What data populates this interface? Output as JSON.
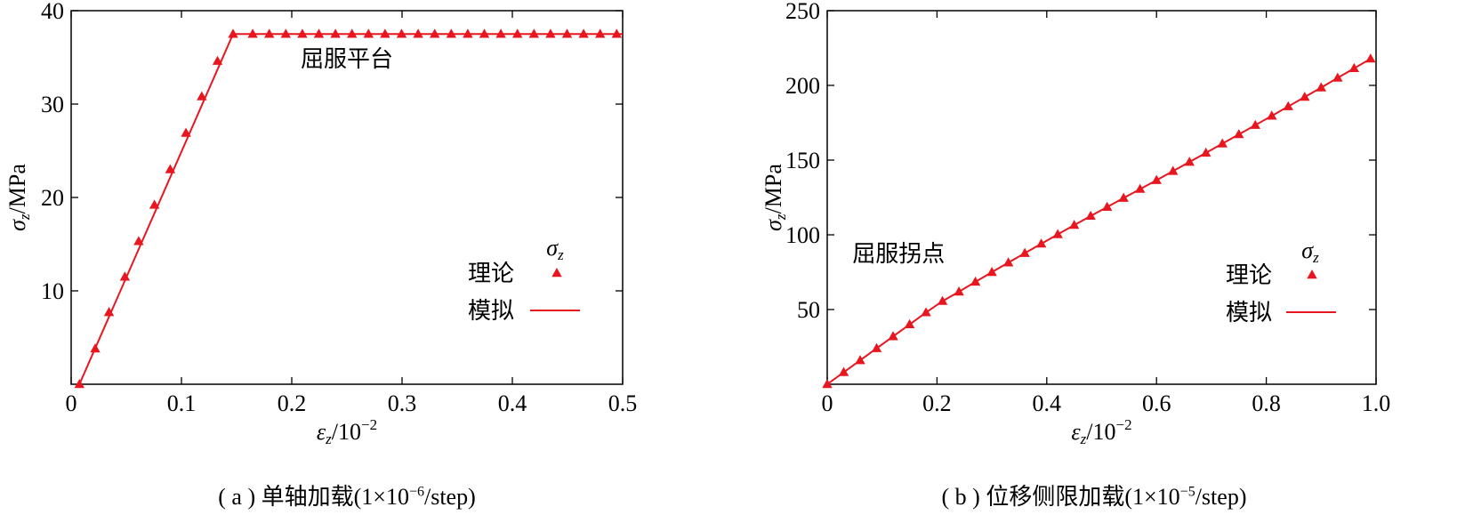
{
  "chart_data": [
    {
      "type": "line",
      "panel": "a",
      "caption_prefix": "( a ) ",
      "caption_main": "单轴加载(1×10",
      "caption_sup": "−6",
      "caption_suffix": "/step)",
      "xlabel_sym": "ε",
      "xlabel_sub": "z",
      "xlabel_rest": "/10",
      "xlabel_sup": "−2",
      "ylabel_sym": "σ",
      "ylabel_sub": "z",
      "ylabel_rest": "/MPa",
      "xlim": [
        0,
        0.5
      ],
      "ylim": [
        0,
        40
      ],
      "xticks": [
        0,
        0.1,
        0.2,
        0.3,
        0.4,
        0.5
      ],
      "xtick_labels": [
        "0",
        "0.1",
        "0.2",
        "0.3",
        "0.4",
        "0.5"
      ],
      "yticks": [
        10,
        20,
        30,
        40
      ],
      "ytick_labels": [
        "10",
        "20",
        "30",
        "40"
      ],
      "annotation": {
        "text": "屈服平台",
        "x": 0.25,
        "y": 34
      },
      "legend": {
        "title_sym": "σ",
        "title_sub": "z",
        "entries": [
          "理论",
          "模拟"
        ],
        "placement": "lower-right"
      },
      "series": [
        {
          "name": "理论",
          "marker": "triangle",
          "x": [
            0.0075,
            0.0218,
            0.0343,
            0.0487,
            0.0612,
            0.0755,
            0.0898,
            0.1041,
            0.1184,
            0.1327,
            0.1468,
            0.1646,
            0.1796,
            0.1946,
            0.2096,
            0.2246,
            0.2396,
            0.2546,
            0.2696,
            0.2846,
            0.2996,
            0.3146,
            0.3296,
            0.3446,
            0.3596,
            0.3746,
            0.3896,
            0.4046,
            0.4196,
            0.4346,
            0.4496,
            0.4646,
            0.4796,
            0.4946
          ],
          "y": [
            0.0,
            3.8,
            7.7,
            11.5,
            15.3,
            19.2,
            23.0,
            26.9,
            30.8,
            34.6,
            37.5,
            37.5,
            37.5,
            37.5,
            37.5,
            37.5,
            37.5,
            37.5,
            37.5,
            37.5,
            37.5,
            37.5,
            37.5,
            37.5,
            37.5,
            37.5,
            37.5,
            37.5,
            37.5,
            37.5,
            37.5,
            37.5,
            37.5,
            37.5
          ]
        },
        {
          "name": "模拟",
          "marker": "line",
          "x": [
            0.0075,
            0.1468,
            0.5
          ],
          "y": [
            0.0,
            37.5,
            37.5
          ]
        }
      ],
      "colors": {
        "series": "#e8161f",
        "axis": "#000000"
      }
    },
    {
      "type": "line",
      "panel": "b",
      "caption_prefix": "( b ) ",
      "caption_main": "位移侧限加载(1×10",
      "caption_sup": "−5",
      "caption_suffix": "/step)",
      "xlabel_sym": "ε",
      "xlabel_sub": "z",
      "xlabel_rest": "/10",
      "xlabel_sup": "−2",
      "ylabel_sym": "σ",
      "ylabel_sub": "z",
      "ylabel_rest": "/MPa",
      "xlim": [
        0,
        1.0
      ],
      "ylim": [
        0,
        250
      ],
      "xticks": [
        0,
        0.2,
        0.4,
        0.6,
        0.8,
        1.0
      ],
      "xtick_labels": [
        "0",
        "0.2",
        "0.4",
        "0.6",
        "0.8",
        "1.0"
      ],
      "yticks": [
        50,
        100,
        150,
        200,
        250
      ],
      "ytick_labels": [
        "50",
        "100",
        "150",
        "200",
        "250"
      ],
      "annotation": {
        "text": "屈服拐点",
        "x": 0.13,
        "y": 82
      },
      "legend": {
        "title_sym": "σ",
        "title_sub": "z",
        "entries": [
          "理论",
          "模拟"
        ],
        "placement": "lower-right"
      },
      "series": [
        {
          "name": "理论",
          "marker": "triangle",
          "x": [
            0.0,
            0.03,
            0.06,
            0.09,
            0.12,
            0.15,
            0.18,
            0.21,
            0.24,
            0.27,
            0.3,
            0.33,
            0.36,
            0.39,
            0.42,
            0.45,
            0.48,
            0.51,
            0.54,
            0.57,
            0.6,
            0.63,
            0.66,
            0.69,
            0.72,
            0.75,
            0.78,
            0.81,
            0.84,
            0.87,
            0.9,
            0.93,
            0.96,
            0.99
          ],
          "y": [
            0.0,
            8.0,
            16.0,
            24.0,
            32.0,
            40.0,
            48.0,
            55.6,
            61.9,
            68.5,
            75.0,
            81.4,
            87.7,
            94.0,
            100.3,
            106.5,
            112.6,
            118.6,
            124.6,
            130.6,
            136.5,
            142.6,
            148.7,
            154.8,
            161.0,
            167.2,
            173.4,
            179.6,
            185.9,
            192.2,
            198.5,
            205.0,
            211.4,
            217.8
          ]
        },
        {
          "name": "模拟",
          "marker": "line",
          "x": [
            0.0,
            0.03,
            0.06,
            0.09,
            0.12,
            0.15,
            0.18,
            0.21,
            0.24,
            0.27,
            0.3,
            0.33,
            0.36,
            0.39,
            0.42,
            0.45,
            0.48,
            0.51,
            0.54,
            0.57,
            0.6,
            0.63,
            0.66,
            0.69,
            0.72,
            0.75,
            0.78,
            0.81,
            0.84,
            0.87,
            0.9,
            0.93,
            0.96,
            0.99
          ],
          "y": [
            0.0,
            8.0,
            16.0,
            24.0,
            32.0,
            40.0,
            48.0,
            55.6,
            61.9,
            68.5,
            75.0,
            81.4,
            87.7,
            94.0,
            100.3,
            106.5,
            112.6,
            118.6,
            124.6,
            130.6,
            136.5,
            142.6,
            148.7,
            154.8,
            161.0,
            167.2,
            173.4,
            179.6,
            185.9,
            192.2,
            198.5,
            205.0,
            211.4,
            217.8
          ]
        }
      ],
      "colors": {
        "series": "#e8161f",
        "axis": "#000000"
      }
    }
  ]
}
